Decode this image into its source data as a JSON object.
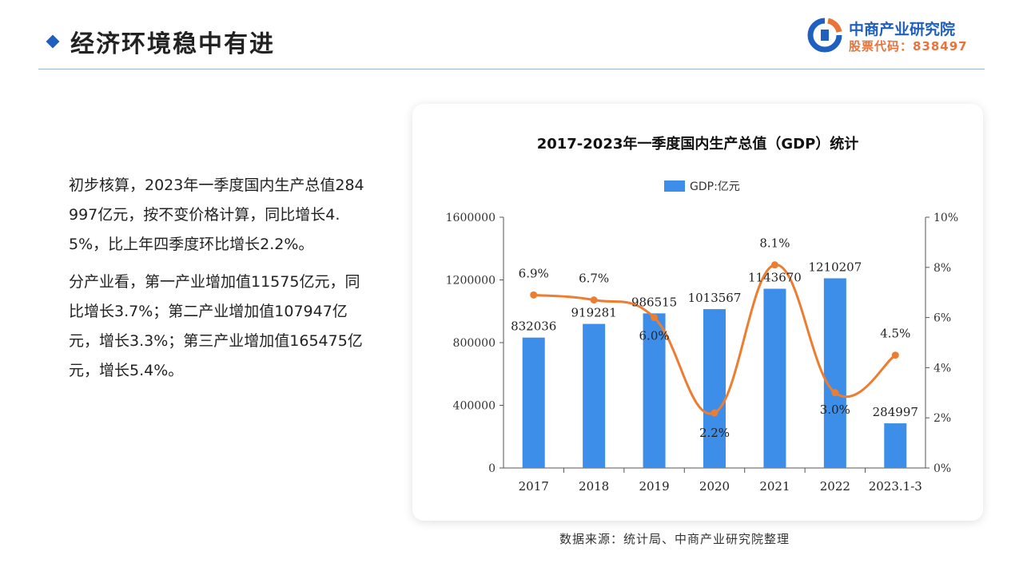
{
  "header": {
    "title": "经济环境稳中有进",
    "logo_name": "中商产业研究院",
    "logo_code": "股票代码：838497"
  },
  "body_text": [
    "初步核算，2023年一季度国内生产总值284997亿元，按不变价格计算，同比增长4.5%，比上年四季度环比增长2.2%。",
    "分产业看，第一产业增加值11575亿元，同比增长3.7%；第二产业增加值107947亿元，增长3.3%；第三产业增加值165475亿元，增长5.4%。"
  ],
  "source": "数据来源：统计局、中商产业研究院整理",
  "colors": {
    "bar": "#3d8ee8",
    "line": "#ed7d31",
    "accent": "#1f5fbf"
  },
  "chart_data": {
    "type": "bar",
    "title": "2017-2023年一季度国内生产总值（GDP）统计",
    "categories": [
      "2017",
      "2018",
      "2019",
      "2020",
      "2021",
      "2022",
      "2023.1-3"
    ],
    "series": [
      {
        "name": "GDP:亿元",
        "type": "bar",
        "axis": "left",
        "values": [
          832036,
          919281,
          986515,
          1013567,
          1143670,
          1210207,
          284997
        ],
        "labels": [
          "832036",
          "919281",
          "986515",
          "1013567",
          "1143670",
          "1210207",
          "284997"
        ]
      },
      {
        "type": "line",
        "axis": "right",
        "smooth": true,
        "values": [
          6.9,
          6.7,
          6.0,
          2.2,
          8.1,
          3.0,
          4.5
        ],
        "labels": [
          "6.9%",
          "6.7%",
          "6.0%",
          "2.2%",
          "8.1%",
          "3.0%",
          "4.5%"
        ]
      }
    ],
    "y_left": {
      "ylim": [
        0,
        1600000
      ],
      "ticks": [
        "0",
        "400000",
        "800000",
        "1200000",
        "1600000"
      ]
    },
    "y_right": {
      "ylim": [
        0,
        10
      ],
      "ticks": [
        "0%",
        "2%",
        "4%",
        "6%",
        "8%",
        "10%"
      ]
    },
    "legend": {
      "position": "top-center",
      "entries": [
        "GDP:亿元"
      ]
    },
    "grid": false
  }
}
